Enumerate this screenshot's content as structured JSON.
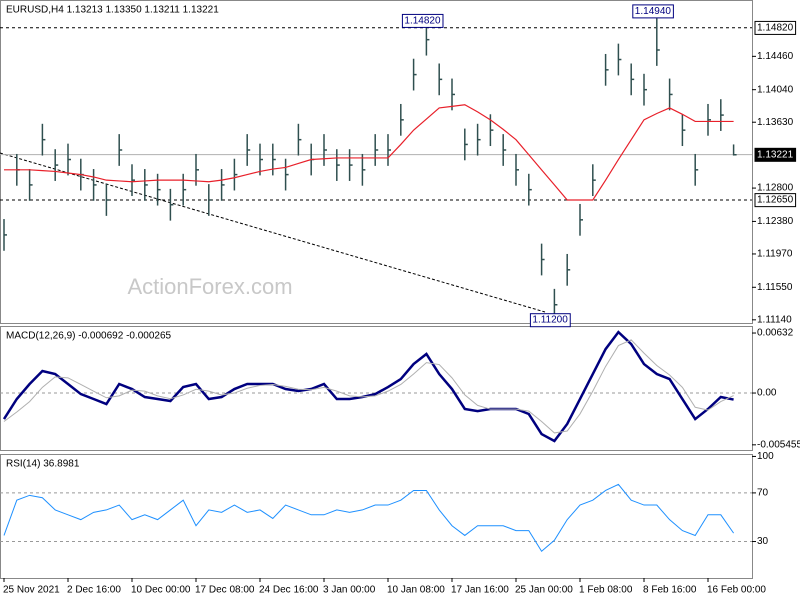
{
  "chart_data": [
    {
      "type": "ohlc",
      "title": "EURUSD,H4  1.13213 1.13350 1.13211 1.13221",
      "watermark": "ActionForex.com",
      "categories": [
        "25 Nov 2021",
        null,
        null,
        null,
        null,
        "2 Dec 16:00",
        null,
        null,
        null,
        null,
        "10 Dec 00:00",
        null,
        null,
        null,
        null,
        "17 Dec 08:00",
        null,
        null,
        null,
        null,
        "24 Dec 16:00",
        null,
        null,
        null,
        null,
        "3 Jan 00:00",
        null,
        null,
        null,
        null,
        "10 Jan 08:00",
        null,
        null,
        null,
        null,
        "17 Jan 16:00",
        null,
        null,
        null,
        null,
        "25 Jan 00:00",
        null,
        null,
        null,
        null,
        "1 Feb 08:00",
        null,
        null,
        null,
        null,
        "8 Feb 16:00",
        null,
        null,
        null,
        null,
        "16 Feb 00:00",
        null,
        null
      ],
      "high": [
        1.1241,
        1.1323,
        1.1304,
        1.1361,
        1.1329,
        1.1336,
        1.1317,
        1.1304,
        1.1285,
        1.1348,
        1.131,
        1.1304,
        1.1298,
        1.1279,
        1.1298,
        1.1323,
        1.1285,
        1.1304,
        1.1317,
        1.1348,
        1.1336,
        1.1336,
        1.1317,
        1.1361,
        1.1336,
        1.1348,
        1.1329,
        1.1329,
        1.1323,
        1.1348,
        1.1348,
        1.1386,
        1.1443,
        1.1482,
        1.1437,
        1.1418,
        1.1355,
        1.1361,
        1.1373,
        1.1348,
        1.1323,
        1.1298,
        1.121,
        1.1153,
        1.1197,
        1.126,
        1.131,
        1.1449,
        1.1462,
        1.1437,
        1.1424,
        1.1494,
        1.1418,
        1.1373,
        1.1323,
        1.1386,
        1.1392,
        1.1335
      ],
      "low": [
        1.1201,
        1.1283,
        1.1264,
        1.1321,
        1.1289,
        1.1296,
        1.1277,
        1.1264,
        1.1245,
        1.1308,
        1.127,
        1.1264,
        1.1258,
        1.1239,
        1.1258,
        1.1283,
        1.1245,
        1.1264,
        1.1277,
        1.1308,
        1.1296,
        1.1296,
        1.1277,
        1.1321,
        1.1296,
        1.1308,
        1.1289,
        1.1289,
        1.1283,
        1.1308,
        1.1308,
        1.1346,
        1.1403,
        1.1447,
        1.1397,
        1.1378,
        1.1315,
        1.1321,
        1.1333,
        1.1308,
        1.1283,
        1.1258,
        1.117,
        1.112,
        1.1157,
        1.122,
        1.127,
        1.1409,
        1.1422,
        1.1397,
        1.1384,
        1.1434,
        1.1378,
        1.1333,
        1.1283,
        1.1346,
        1.1352,
        1.1321
      ],
      "close": [
        1.1221,
        1.1303,
        1.1284,
        1.1341,
        1.1309,
        1.1316,
        1.1297,
        1.1284,
        1.1265,
        1.1328,
        1.129,
        1.1284,
        1.1278,
        1.1259,
        1.1278,
        1.1303,
        1.1265,
        1.1284,
        1.1297,
        1.1328,
        1.1316,
        1.1316,
        1.1297,
        1.1341,
        1.1316,
        1.1328,
        1.1309,
        1.1309,
        1.1303,
        1.1328,
        1.1328,
        1.1366,
        1.1423,
        1.1467,
        1.1417,
        1.1398,
        1.1335,
        1.1341,
        1.1353,
        1.1328,
        1.1303,
        1.1278,
        1.119,
        1.1133,
        1.1177,
        1.124,
        1.129,
        1.1429,
        1.1442,
        1.1417,
        1.1404,
        1.1454,
        1.1398,
        1.1353,
        1.1303,
        1.1366,
        1.1372,
        1.1322
      ],
      "color": "#2f4f4f",
      "ma": {
        "color": "#e8202a",
        "values": [
          1.1303,
          1.1303,
          1.1303,
          1.1302,
          1.1301,
          1.1299,
          1.1297,
          1.1294,
          1.129,
          1.1289,
          1.1288,
          1.1289,
          1.129,
          1.129,
          1.129,
          1.1289,
          1.1288,
          1.129,
          1.1293,
          1.1297,
          1.1301,
          1.1304,
          1.1306,
          1.1311,
          1.1316,
          1.1317,
          1.1318,
          1.1318,
          1.1318,
          1.1318,
          1.1318,
          1.1335,
          1.1353,
          1.1367,
          1.1381,
          1.1383,
          1.1385,
          1.1376,
          1.1366,
          1.1354,
          1.1341,
          1.1322,
          1.1303,
          1.1284,
          1.1265,
          1.1265,
          1.1265,
          1.129,
          1.1316,
          1.1341,
          1.1366,
          1.1374,
          1.1381,
          1.1373,
          1.1364,
          1.1364,
          1.1364,
          1.1364
        ]
      },
      "ylim": [
        1.111,
        1.1517
      ],
      "yticks": [
        {
          "value": 1.1446,
          "label": "1.14460"
        },
        {
          "value": 1.1404,
          "label": "1.14040"
        },
        {
          "value": 1.1363,
          "label": "1.13630"
        },
        {
          "value": 1.128,
          "label": "1.12800"
        },
        {
          "value": 1.1238,
          "label": "1.12380"
        },
        {
          "value": 1.1197,
          "label": "1.11970"
        },
        {
          "value": 1.1155,
          "label": "1.11550"
        },
        {
          "value": 1.1114,
          "label": "1.11140"
        }
      ],
      "levels": [
        {
          "value": 1.1482,
          "label": "1.14820"
        },
        {
          "value": 1.1265,
          "label": "1.12650"
        }
      ],
      "last_price": {
        "value": 1.13221,
        "label": "1.13221"
      },
      "annotations": [
        {
          "value": 1.1482,
          "label": "1.14820"
        },
        {
          "value": 1.1494,
          "label": "1.14940"
        },
        {
          "value": 1.112,
          "label": "1.11200"
        }
      ]
    },
    {
      "type": "line",
      "title": "MACD(12,26,9) -0.000692 -0.000265",
      "series": [
        {
          "color": "#00007f",
          "values": [
            -0.00274,
            -0.00063,
            0.00095,
            0.00232,
            0.002,
            0.00095,
            -0.00011,
            -0.00063,
            -0.00116,
            0.00095,
            0.00042,
            -0.00042,
            -0.00063,
            -0.00084,
            0.00063,
            0.00095,
            -0.00063,
            -0.00042,
            0.00042,
            0.00095,
            0.00095,
            0.00095,
            0.00042,
            0.00021,
            0.00042,
            0.00095,
            -0.00063,
            -0.00063,
            -0.00042,
            -0.00011,
            0.00063,
            0.00147,
            0.00305,
            0.00411,
            0.002,
            0.00042,
            -0.00168,
            -0.0019,
            -0.00168,
            -0.00168,
            -0.00168,
            -0.00221,
            -0.00432,
            -0.00505,
            -0.00326,
            -0.00063,
            0.002,
            0.00463,
            0.00642,
            0.00516,
            0.00305,
            0.002,
            0.00147,
            -0.00063,
            -0.00274,
            -0.00168,
            -0.00042,
            -0.00069
          ]
        },
        {
          "color": "#b0b0b0",
          "values": [
            -0.003,
            -0.002,
            -0.0009,
            0.0006,
            0.0017,
            0.0016,
            0.0009,
            0.0002,
            -0.0005,
            -0.0003,
            0.0003,
            0.0002,
            -0.0003,
            -0.0006,
            -0.0002,
            0.0004,
            0.0002,
            -0.0002,
            0,
            0.0005,
            0.0008,
            0.0009,
            0.0007,
            0.0004,
            0.00035,
            0.0006,
            0.0002,
            -0.0003,
            -0.0004,
            -0.0003,
            0.0002,
            0.0009,
            0.002,
            0.0032,
            0.003,
            0.0016,
            -0.0002,
            -0.0013,
            -0.0017,
            -0.0017,
            -0.0017,
            -0.0019,
            -0.003,
            -0.0042,
            -0.004,
            -0.0022,
            0.0002,
            0.0028,
            0.005,
            0.0056,
            0.0042,
            0.0029,
            0.0019,
            0.0006,
            -0.0015,
            -0.0018,
            -0.0009,
            -0.00027
          ]
        }
      ],
      "ylim": [
        -0.006,
        0.00706
      ],
      "yticks": [
        0.00632,
        {
          "value": 0,
          "label": "0.00"
        },
        -0.005455
      ],
      "levels": [
        0
      ]
    },
    {
      "type": "line",
      "title": "RSI(14) 36.8981",
      "series": [
        {
          "color": "#1e90ff",
          "values": [
            35,
            64,
            68,
            66,
            56,
            52,
            48,
            54,
            56,
            60,
            48,
            52,
            48,
            56,
            64,
            43,
            56,
            54,
            60,
            54,
            56,
            49,
            60,
            56,
            52,
            52,
            56,
            54,
            56,
            60,
            60,
            64,
            72,
            72,
            56,
            43,
            35,
            43,
            43,
            43,
            39,
            39,
            22,
            31,
            48,
            60,
            64,
            72,
            77,
            64,
            60,
            60,
            48,
            39,
            35,
            52,
            52,
            36.8981
          ]
        }
      ],
      "ylim": [
        0,
        102
      ],
      "yticks": [
        30,
        70,
        100
      ],
      "levels": [
        30,
        70
      ]
    }
  ]
}
